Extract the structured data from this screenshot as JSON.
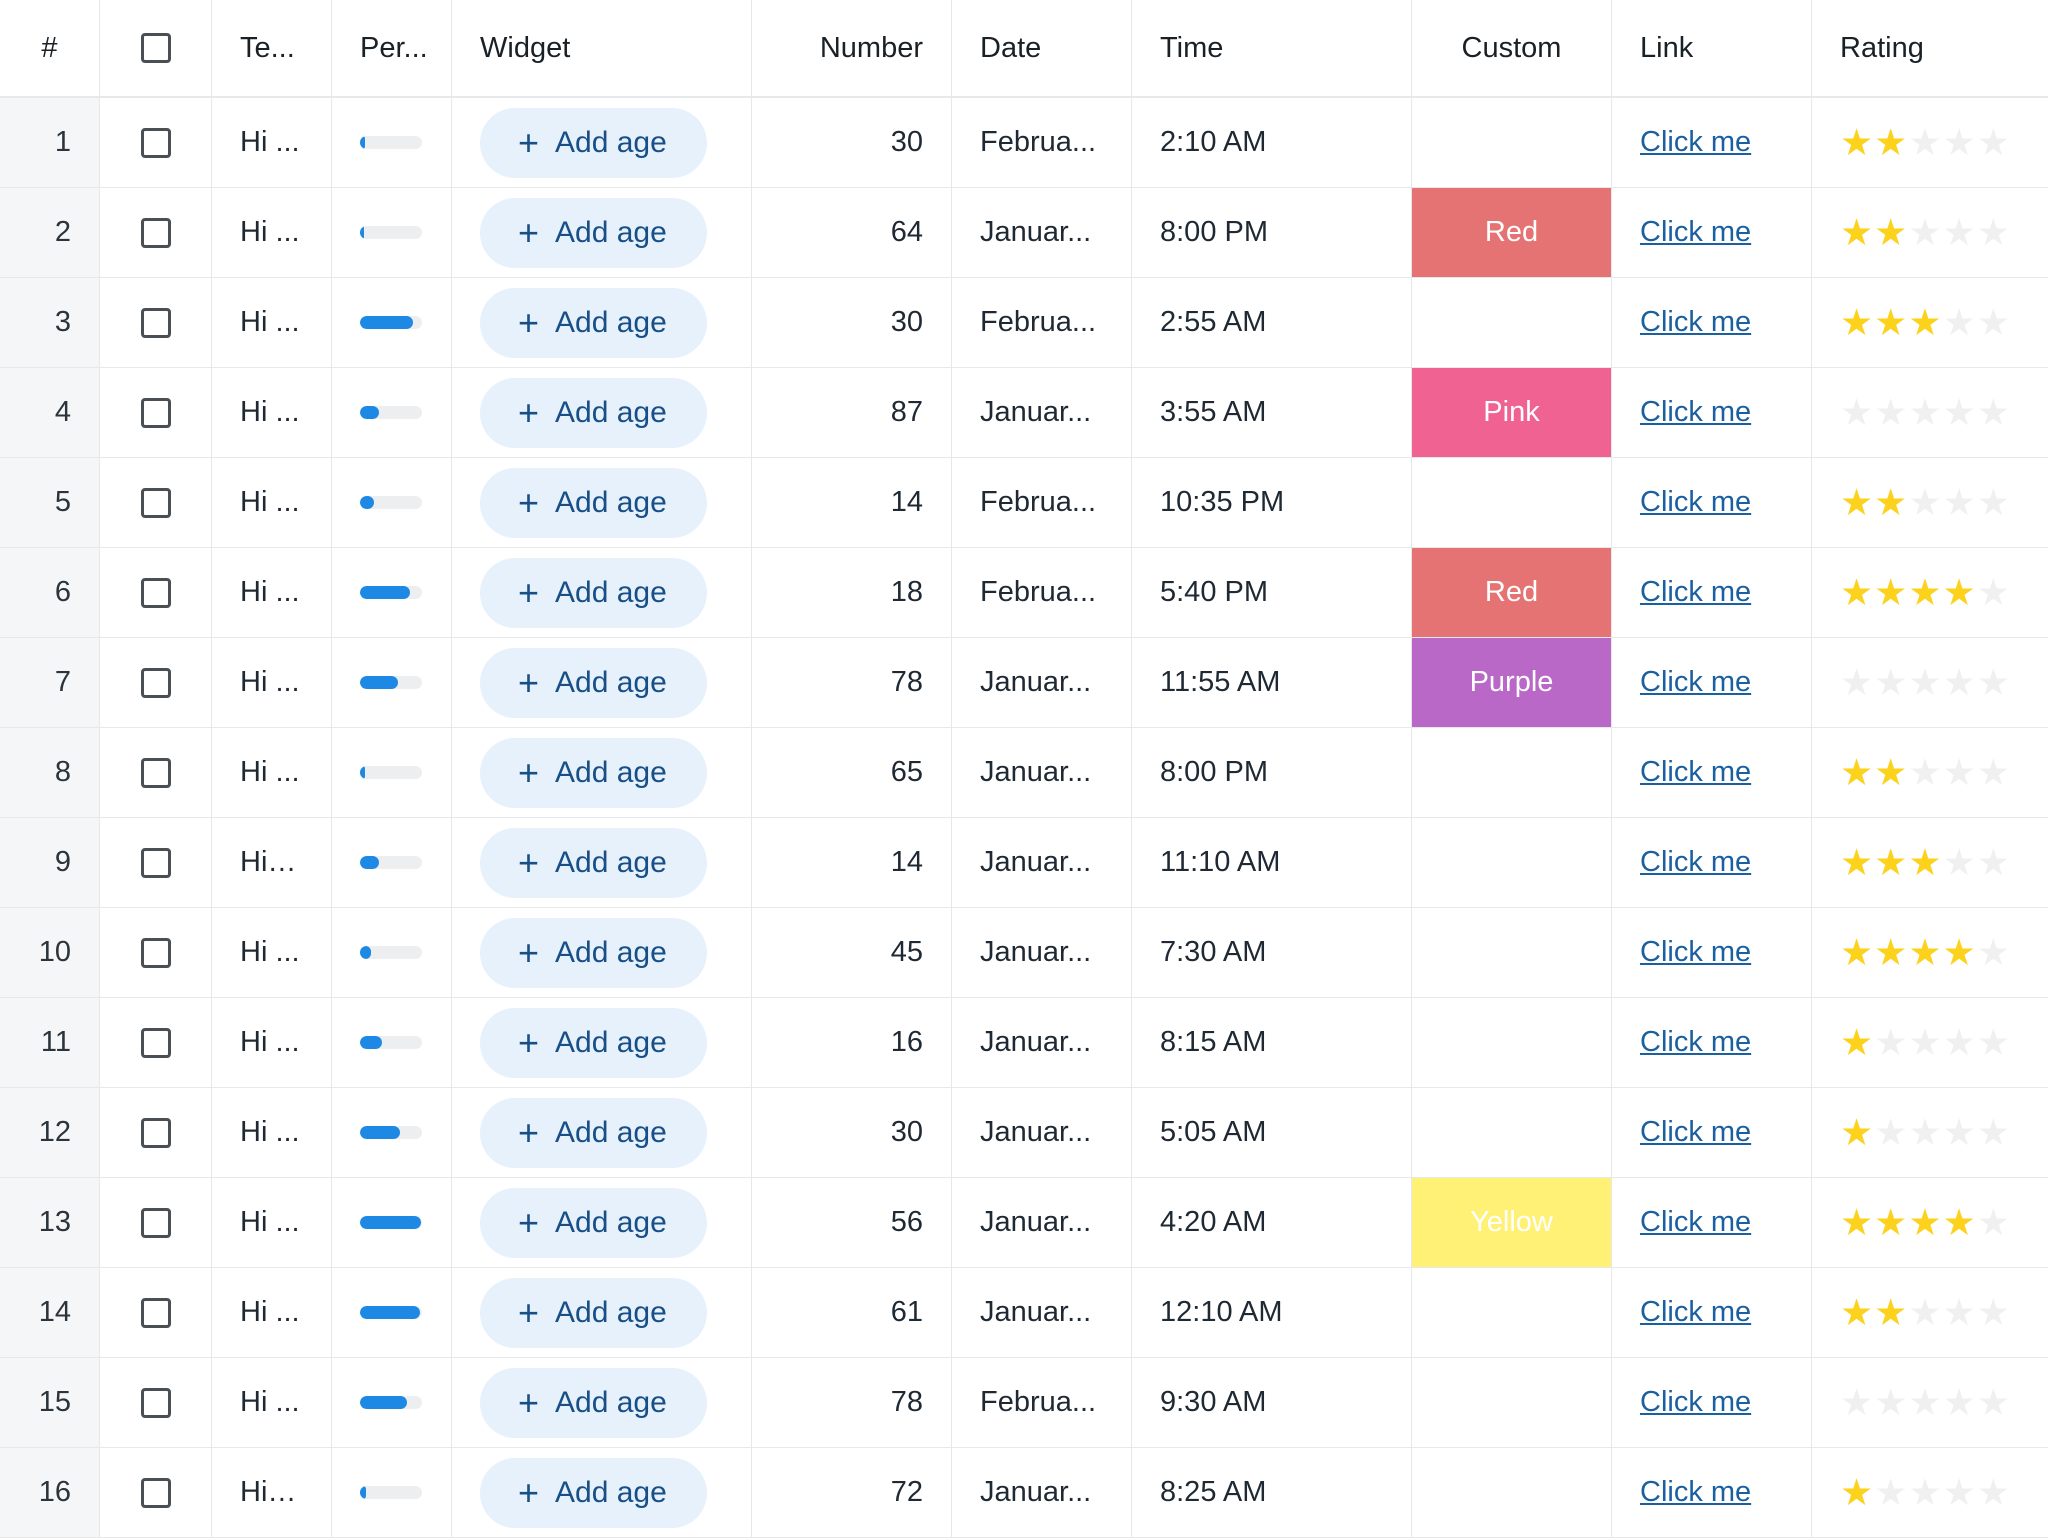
{
  "headers": {
    "index": "#",
    "text": "Te...",
    "percent": "Per...",
    "widget": "Widget",
    "number": "Number",
    "date": "Date",
    "time": "Time",
    "custom": "Custom",
    "link": "Link",
    "rating": "Rating"
  },
  "widget_label": "Add age",
  "colors": {
    "Red": "#e57373",
    "Pink": "#f06292",
    "Purple": "#ba68c8",
    "Yellow": "#fff176",
    "bar": "#1e88e5",
    "star": "#fcd21d"
  },
  "rows": [
    {
      "index": "1",
      "text": "Hi ...",
      "percent": 0.08,
      "number": "30",
      "date": "Februa...",
      "time": "2:10 AM",
      "custom": "",
      "link": "Click me",
      "rating": 2
    },
    {
      "index": "2",
      "text": "Hi ...",
      "percent": 0.06,
      "number": "64",
      "date": "Januar...",
      "time": "8:00 PM",
      "custom": "Red",
      "link": "Click me",
      "rating": 2
    },
    {
      "index": "3",
      "text": "Hi ...",
      "percent": 0.85,
      "number": "30",
      "date": "Februa...",
      "time": "2:55 AM",
      "custom": "",
      "link": "Click me",
      "rating": 3
    },
    {
      "index": "4",
      "text": "Hi ...",
      "percent": 0.3,
      "number": "87",
      "date": "Januar...",
      "time": "3:55 AM",
      "custom": "Pink",
      "link": "Click me",
      "rating": 0
    },
    {
      "index": "5",
      "text": "Hi ...",
      "percent": 0.22,
      "number": "14",
      "date": "Februa...",
      "time": "10:35 PM",
      "custom": "",
      "link": "Click me",
      "rating": 2
    },
    {
      "index": "6",
      "text": "Hi ...",
      "percent": 0.8,
      "number": "18",
      "date": "Februa...",
      "time": "5:40 PM",
      "custom": "Red",
      "link": "Click me",
      "rating": 4
    },
    {
      "index": "7",
      "text": "Hi ...",
      "percent": 0.62,
      "number": "78",
      "date": "Januar...",
      "time": "11:55 AM",
      "custom": "Purple",
      "link": "Click me",
      "rating": 0
    },
    {
      "index": "8",
      "text": "Hi ...",
      "percent": 0.08,
      "number": "65",
      "date": "Januar...",
      "time": "8:00 PM",
      "custom": "",
      "link": "Click me",
      "rating": 2
    },
    {
      "index": "9",
      "text": "Hi L...",
      "percent": 0.3,
      "number": "14",
      "date": "Januar...",
      "time": "11:10 AM",
      "custom": "",
      "link": "Click me",
      "rating": 3
    },
    {
      "index": "10",
      "text": "Hi ...",
      "percent": 0.18,
      "number": "45",
      "date": "Januar...",
      "time": "7:30 AM",
      "custom": "",
      "link": "Click me",
      "rating": 4
    },
    {
      "index": "11",
      "text": "Hi ...",
      "percent": 0.35,
      "number": "16",
      "date": "Januar...",
      "time": "8:15 AM",
      "custom": "",
      "link": "Click me",
      "rating": 1
    },
    {
      "index": "12",
      "text": "Hi ...",
      "percent": 0.65,
      "number": "30",
      "date": "Januar...",
      "time": "5:05 AM",
      "custom": "",
      "link": "Click me",
      "rating": 1
    },
    {
      "index": "13",
      "text": "Hi ...",
      "percent": 0.98,
      "number": "56",
      "date": "Januar...",
      "time": "4:20 AM",
      "custom": "Yellow",
      "link": "Click me",
      "rating": 4
    },
    {
      "index": "14",
      "text": "Hi ...",
      "percent": 0.97,
      "number": "61",
      "date": "Januar...",
      "time": "12:10 AM",
      "custom": "",
      "link": "Click me",
      "rating": 2
    },
    {
      "index": "15",
      "text": "Hi ...",
      "percent": 0.75,
      "number": "78",
      "date": "Februa...",
      "time": "9:30 AM",
      "custom": "",
      "link": "Click me",
      "rating": 0
    },
    {
      "index": "16",
      "text": "Hi L...",
      "percent": 0.1,
      "number": "72",
      "date": "Januar...",
      "time": "8:25 AM",
      "custom": "",
      "link": "Click me",
      "rating": 1
    }
  ]
}
